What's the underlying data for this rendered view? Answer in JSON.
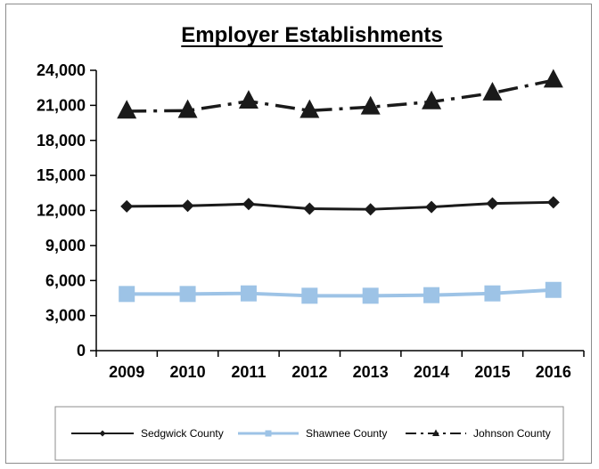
{
  "chart_data": {
    "type": "line",
    "title": "Employer Establishments",
    "xlabel": "",
    "ylabel": "",
    "categories": [
      "2009",
      "2010",
      "2011",
      "2012",
      "2013",
      "2014",
      "2015",
      "2016"
    ],
    "ylim": [
      0,
      24000
    ],
    "yticks": [
      0,
      3000,
      6000,
      9000,
      12000,
      15000,
      18000,
      21000,
      24000
    ],
    "ytick_labels": [
      "0",
      "3,000",
      "6,000",
      "9,000",
      "12,000",
      "15,000",
      "18,000",
      "21,000",
      "24,000"
    ],
    "grid": false,
    "legend_position": "bottom",
    "series": [
      {
        "name": "Sedgwick County",
        "color": "#1a1a1a",
        "marker": "diamond",
        "line": "solid",
        "values": [
          12350,
          12400,
          12550,
          12150,
          12100,
          12300,
          12600,
          12700
        ]
      },
      {
        "name": "Shawnee County",
        "color": "#9dc3e6",
        "marker": "square",
        "line": "solid",
        "values": [
          4850,
          4850,
          4900,
          4700,
          4700,
          4750,
          4900,
          5200
        ]
      },
      {
        "name": "Johnson County",
        "color": "#1a1a1a",
        "marker": "triangle",
        "line": "dashdot",
        "values": [
          20500,
          20550,
          21350,
          20550,
          20850,
          21300,
          22050,
          23150
        ]
      }
    ]
  }
}
